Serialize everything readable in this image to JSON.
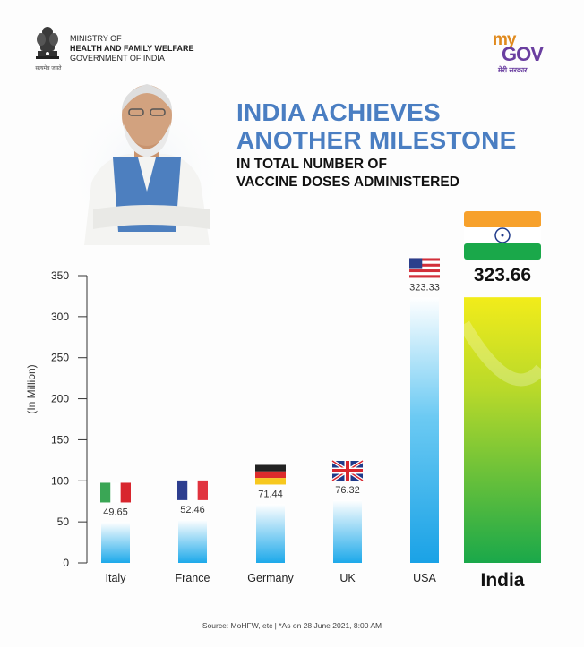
{
  "header": {
    "ministry_line1": "MINISTRY OF",
    "ministry_line2": "HEALTH AND FAMILY WELFARE",
    "ministry_line3": "GOVERNMENT OF INDIA",
    "emblem_motto": "सत्यमेव जयते",
    "logo_my": "my",
    "logo_gov": "GOV",
    "logo_hindi": "मेरी सरकार"
  },
  "title": {
    "line1": "INDIA ACHIEVES",
    "line2": "ANOTHER MILESTONE",
    "sub1": "IN TOTAL NUMBER OF",
    "sub2": "VACCINE DOSES ADMINISTERED"
  },
  "footer": {
    "source": "Source: MoHFW, etc  |  *As on 28 June 2021, 8:00 AM"
  },
  "colors": {
    "title_blue": "#4a7ec2",
    "bar_blue_top": "#ffffff",
    "bar_blue_bottom": "#1da9ea",
    "india_green": "#1aa84a",
    "india_yellow": "#f2ec1a",
    "saffron": "#f7a12c"
  },
  "chart_data": {
    "type": "bar",
    "ylabel": "(In Million)",
    "ylim": [
      0,
      350
    ],
    "yticks": [
      0,
      50,
      100,
      150,
      200,
      250,
      300,
      350
    ],
    "categories": [
      "Italy",
      "France",
      "Germany",
      "UK",
      "USA",
      "India"
    ],
    "values": [
      49.65,
      52.46,
      71.44,
      76.32,
      323.33,
      323.66
    ],
    "value_labels": [
      "49.65",
      "52.46",
      "71.44",
      "76.32",
      "323.33",
      "323.66"
    ],
    "flags": [
      "italy-flag",
      "france-flag",
      "germany-flag",
      "uk-flag",
      "usa-flag",
      "india-flag"
    ],
    "highlight": "India",
    "grid": false
  }
}
